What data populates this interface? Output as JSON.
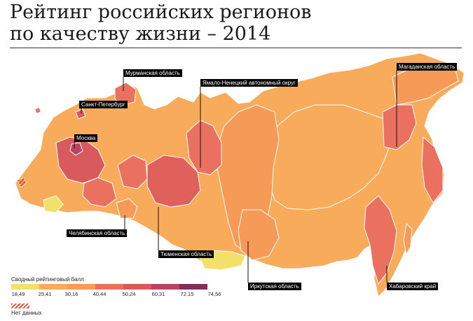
{
  "title": {
    "line1": "Рейтинг российских регионов",
    "line2": "по качеству жизни – 2014"
  },
  "colors": {
    "scale": [
      "#f3e06a",
      "#f5c76a",
      "#f8ab5a",
      "#f69a57",
      "#ea7060",
      "#d95a5c",
      "#b8455f",
      "#7e2f5a"
    ],
    "nodata": "#e0523a",
    "label_bg": "#000000"
  },
  "legend": {
    "title": "Сводный рейтинговый балл",
    "ticks": [
      "18,49",
      "25,41",
      "30,16",
      "40,44",
      "50,24",
      "60,31",
      "72,15",
      "74,56"
    ],
    "nodata_label": "Нет данных"
  },
  "regions": {
    "murmansk": "Мурманская область",
    "yamal": "Ямало-Ненецкий автономный округ",
    "spb": "Санкт-Петербург",
    "moscow": "Москва",
    "magadan": "Магаданская область",
    "chelyabinsk": "Челябинская область",
    "tyumen": "Тюменская область",
    "irkutsk": "Иркутская область",
    "khabarovsk": "Хабаровский край"
  }
}
